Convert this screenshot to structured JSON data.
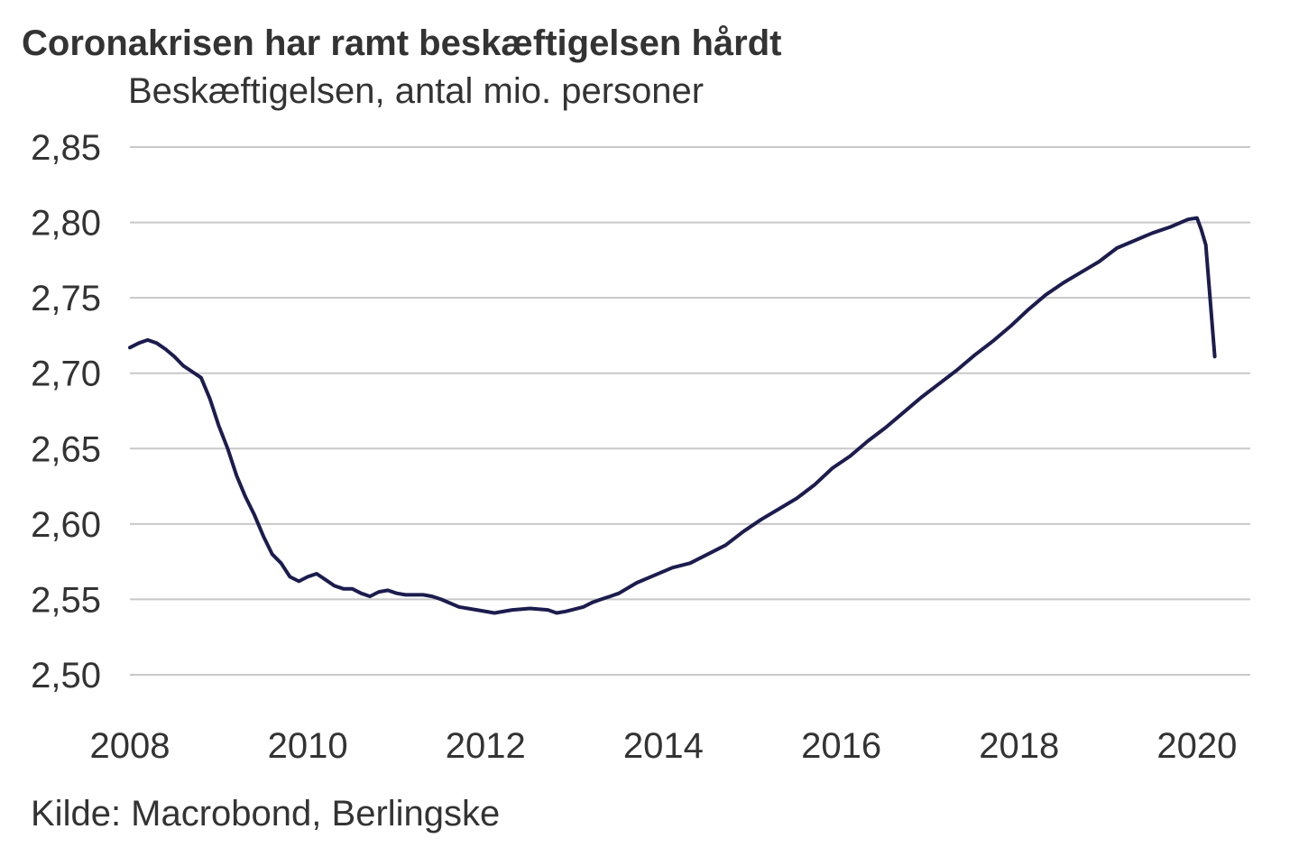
{
  "chart_data": {
    "type": "line",
    "title": "Coronakrisen har ramt beskæftigelsen hårdt",
    "subtitle": "Beskæftigelsen, antal mio. personer",
    "source": "Kilde: Macrobond, Berlingske",
    "xlabel": "",
    "ylabel": "",
    "xlim": [
      2008,
      2020.6
    ],
    "ylim": [
      2.5,
      2.85
    ],
    "grid": true,
    "x_ticks": [
      2008,
      2010,
      2012,
      2014,
      2016,
      2018,
      2020
    ],
    "x_tick_labels": [
      "2008",
      "2010",
      "2012",
      "2014",
      "2016",
      "2018",
      "2020"
    ],
    "y_ticks": [
      2.5,
      2.55,
      2.6,
      2.65,
      2.7,
      2.75,
      2.8,
      2.85
    ],
    "y_tick_labels": [
      "2,50",
      "2,55",
      "2,60",
      "2,65",
      "2,70",
      "2,75",
      "2,80",
      "2,85"
    ],
    "series": [
      {
        "name": "Beskæftigelsen",
        "color": "#1c1c4e",
        "x": [
          2008.0,
          2008.1,
          2008.2,
          2008.3,
          2008.4,
          2008.5,
          2008.6,
          2008.7,
          2008.8,
          2008.9,
          2009.0,
          2009.1,
          2009.2,
          2009.3,
          2009.4,
          2009.5,
          2009.6,
          2009.7,
          2009.8,
          2009.9,
          2010.0,
          2010.1,
          2010.2,
          2010.3,
          2010.4,
          2010.5,
          2010.6,
          2010.7,
          2010.8,
          2010.9,
          2011.0,
          2011.1,
          2011.2,
          2011.3,
          2011.4,
          2011.5,
          2011.7,
          2011.9,
          2012.1,
          2012.3,
          2012.5,
          2012.7,
          2012.8,
          2012.9,
          2013.1,
          2013.2,
          2013.3,
          2013.4,
          2013.5,
          2013.7,
          2013.9,
          2014.1,
          2014.3,
          2014.5,
          2014.7,
          2014.9,
          2015.1,
          2015.3,
          2015.5,
          2015.7,
          2015.9,
          2016.1,
          2016.3,
          2016.5,
          2016.7,
          2016.9,
          2017.1,
          2017.3,
          2017.5,
          2017.7,
          2017.9,
          2018.1,
          2018.3,
          2018.5,
          2018.7,
          2018.9,
          2019.1,
          2019.3,
          2019.5,
          2019.7,
          2019.9,
          2020.0,
          2020.05,
          2020.1,
          2020.2
        ],
        "values": [
          2.717,
          2.72,
          2.722,
          2.72,
          2.716,
          2.711,
          2.705,
          2.701,
          2.697,
          2.683,
          2.665,
          2.65,
          2.632,
          2.618,
          2.606,
          2.592,
          2.58,
          2.574,
          2.565,
          2.562,
          2.565,
          2.567,
          2.563,
          2.559,
          2.557,
          2.557,
          2.554,
          2.552,
          2.555,
          2.556,
          2.554,
          2.553,
          2.553,
          2.553,
          2.552,
          2.55,
          2.545,
          2.543,
          2.541,
          2.543,
          2.544,
          2.543,
          2.541,
          2.542,
          2.545,
          2.548,
          2.55,
          2.552,
          2.554,
          2.561,
          2.566,
          2.571,
          2.574,
          2.58,
          2.586,
          2.595,
          2.603,
          2.61,
          2.617,
          2.626,
          2.637,
          2.645,
          2.655,
          2.664,
          2.674,
          2.684,
          2.693,
          2.702,
          2.712,
          2.721,
          2.731,
          2.742,
          2.752,
          2.76,
          2.767,
          2.774,
          2.783,
          2.788,
          2.793,
          2.797,
          2.802,
          2.803,
          2.795,
          2.785,
          2.711
        ]
      }
    ]
  }
}
